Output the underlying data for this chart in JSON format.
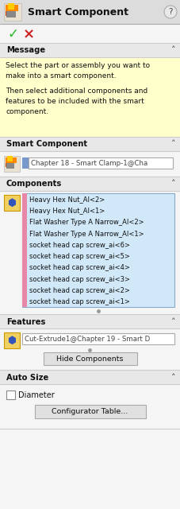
{
  "title": "Smart Component",
  "bg_color": "#f0f0f0",
  "message_label": "Message",
  "message_line1": "Select the part or assembly you want to",
  "message_line2": "make into a smart component.",
  "message_line3": "",
  "message_line4": "Then select additional components and",
  "message_line5": "features to be included with the smart",
  "message_line6": "component.",
  "message_bg": "#ffffcc",
  "smart_component_label": "Smart Component",
  "smart_component_value": "Chapter 18 - Smart Clamp-1@Cha",
  "components_label": "Components",
  "components_list": [
    "Heavy Hex Nut_AI<2>",
    "Heavy Hex Nut_AI<1>",
    "Flat Washer Type A Narrow_AI<2>",
    "Flat Washer Type A Narrow_AI<1>",
    "socket head cap screw_ai<6>",
    "socket head cap screw_ai<5>",
    "socket head cap screw_ai<4>",
    "socket head cap screw_ai<3>",
    "socket head cap screw_ai<2>",
    "socket head cap screw_ai<1>"
  ],
  "list_bg": "#d0e8f8",
  "list_stripe": "#e888a8",
  "features_label": "Features",
  "features_value": "Cut-Extrude1@Chapter 19 - Smart D",
  "hide_btn": "Hide Components",
  "auto_size_label": "Auto Size",
  "diameter_label": "Diameter",
  "config_btn": "Configurator Table...",
  "header_bg": "#e8e8e8",
  "separator_color": "#cccccc",
  "panel_bg": "#f5f5f5"
}
